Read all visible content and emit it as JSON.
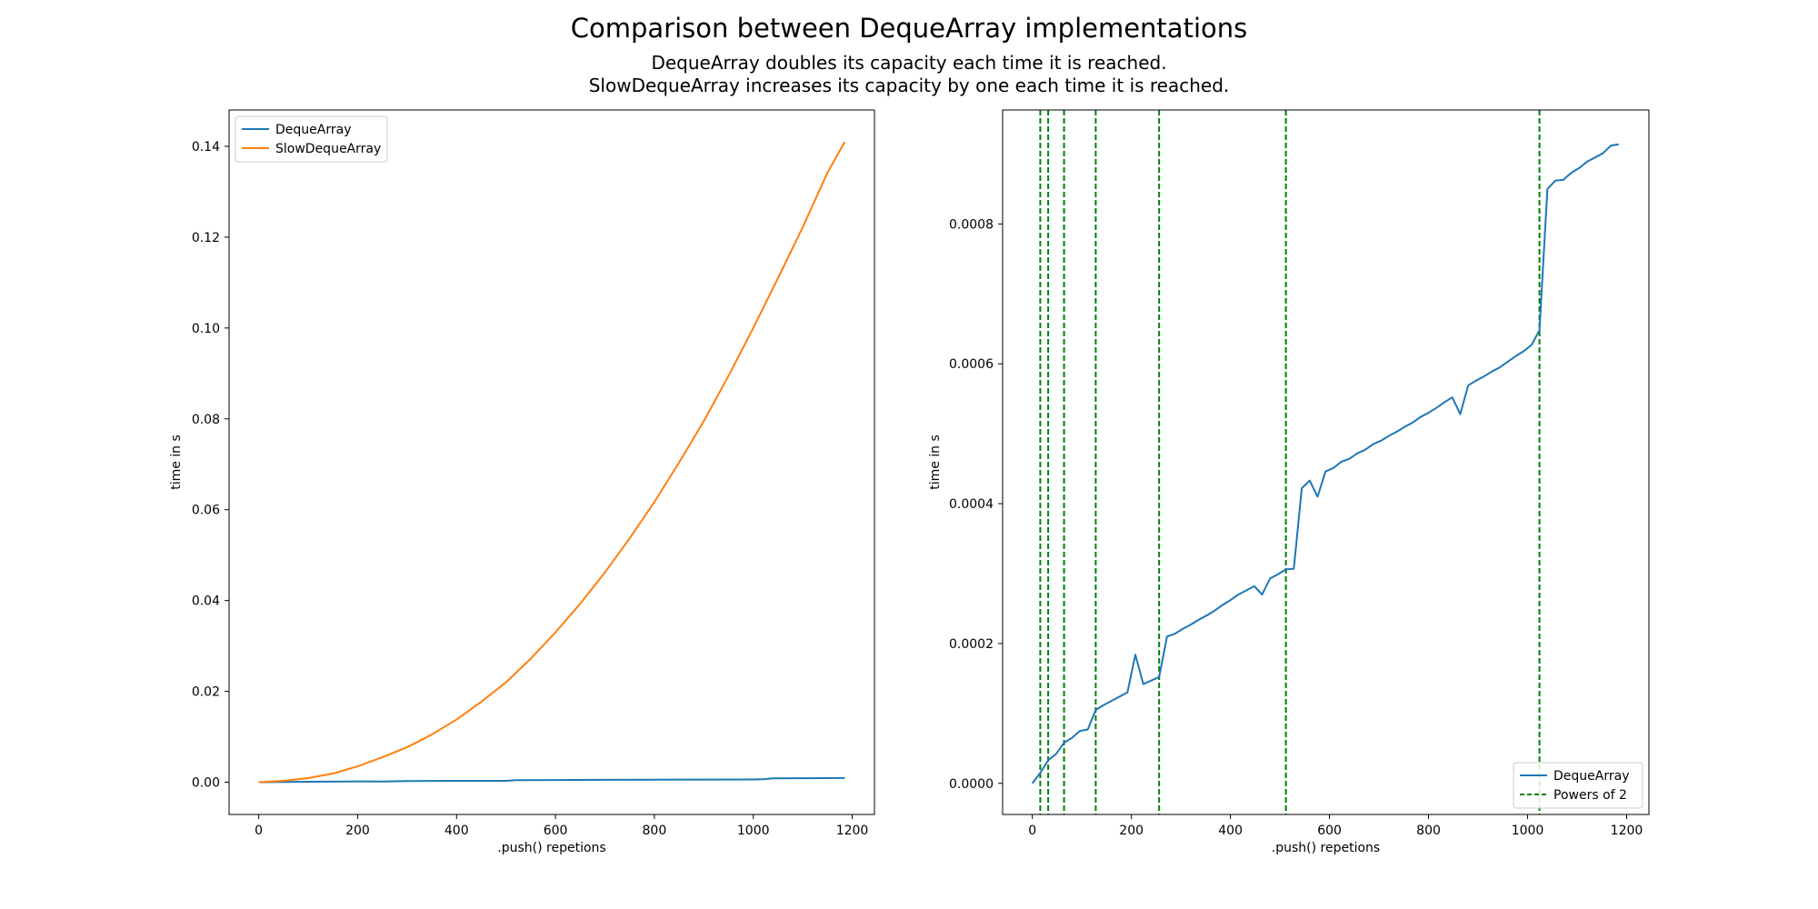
{
  "title": "Comparison between DequeArray implementations",
  "subtitle": [
    "DequeArray doubles its capacity each time it is reached.",
    "SlowDequeArray increases its capacity by one each time it is reached."
  ],
  "colors": {
    "deque": "#1f77b4",
    "slow": "#ff7f0e",
    "powers": "#008000"
  },
  "chart_data": [
    {
      "type": "line",
      "xlabel": ".push() repetions",
      "ylabel": "time in s",
      "xlim": [
        -60,
        1245
      ],
      "ylim": [
        -0.0071,
        0.148
      ],
      "xticks": [
        0,
        200,
        400,
        600,
        800,
        1000,
        1200
      ],
      "yticks": [
        0.0,
        0.02,
        0.04,
        0.06,
        0.08,
        0.1,
        0.12,
        0.14
      ],
      "ytick_labels": [
        "0.00",
        "0.02",
        "0.04",
        "0.06",
        "0.08",
        "0.10",
        "0.12",
        "0.14"
      ],
      "legend_position": "upper-left",
      "series": [
        {
          "name": "DequeArray",
          "color": "#1f77b4",
          "x": [
            0,
            100,
            200,
            250,
            300,
            400,
            500,
            520,
            600,
            700,
            800,
            900,
            1000,
            1020,
            1040,
            1100,
            1185
          ],
          "y": [
            0.0,
            0.00011,
            0.00018,
            0.00016,
            0.00025,
            0.0003,
            0.00031,
            0.00045,
            0.00048,
            0.00052,
            0.00055,
            0.00058,
            0.0006,
            0.00065,
            0.00085,
            0.00088,
            0.00092
          ]
        },
        {
          "name": "SlowDequeArray",
          "color": "#ff7f0e",
          "x": [
            0,
            50,
            100,
            150,
            200,
            250,
            300,
            350,
            400,
            450,
            500,
            550,
            600,
            650,
            700,
            750,
            800,
            850,
            900,
            950,
            1000,
            1050,
            1100,
            1150,
            1185
          ],
          "y": [
            0.0,
            0.0003,
            0.0009,
            0.0019,
            0.0035,
            0.0055,
            0.0077,
            0.0105,
            0.0138,
            0.0177,
            0.022,
            0.0272,
            0.033,
            0.0393,
            0.0462,
            0.0537,
            0.0617,
            0.0704,
            0.0795,
            0.0895,
            0.1,
            0.111,
            0.1222,
            0.1342,
            0.141
          ]
        }
      ]
    },
    {
      "type": "line",
      "xlabel": ".push() repetions",
      "ylabel": "time in s",
      "xlim": [
        -60,
        1245
      ],
      "ylim": [
        -4.45e-05,
        0.000963
      ],
      "xticks": [
        0,
        200,
        400,
        600,
        800,
        1000,
        1200
      ],
      "yticks": [
        0.0,
        0.0002,
        0.0004,
        0.0006,
        0.0008
      ],
      "ytick_labels": [
        "0.0000",
        "0.0002",
        "0.0004",
        "0.0006",
        "0.0008"
      ],
      "legend_position": "lower-right",
      "series": [
        {
          "name": "DequeArray",
          "color": "#1f77b4",
          "x": [
            0,
            16,
            32,
            48,
            64,
            80,
            96,
            112,
            128,
            144,
            160,
            176,
            192,
            208,
            224,
            240,
            256,
            272,
            288,
            304,
            320,
            336,
            352,
            368,
            384,
            400,
            416,
            432,
            448,
            464,
            480,
            496,
            512,
            528,
            544,
            560,
            576,
            592,
            608,
            624,
            640,
            656,
            672,
            688,
            704,
            720,
            736,
            752,
            768,
            784,
            800,
            816,
            832,
            848,
            864,
            880,
            896,
            912,
            928,
            944,
            960,
            976,
            992,
            1008,
            1024,
            1040,
            1056,
            1072,
            1088,
            1104,
            1120,
            1136,
            1152,
            1168,
            1184
          ],
          "y": [
            0.0,
            1.5e-05,
            3.3e-05,
            4.2e-05,
            5.8e-05,
            6.5e-05,
            7.5e-05,
            7.7e-05,
            0.000105,
            0.000112,
            0.000118,
            0.000124,
            0.00013,
            0.000184,
            0.000142,
            0.000147,
            0.000152,
            0.00021,
            0.000214,
            0.000221,
            0.000227,
            0.000234,
            0.00024,
            0.000247,
            0.000255,
            0.000262,
            0.00027,
            0.000276,
            0.000282,
            0.00027,
            0.000293,
            0.000299,
            0.000306,
            0.000307,
            0.000422,
            0.000433,
            0.00041,
            0.000446,
            0.000451,
            0.00046,
            0.000464,
            0.000472,
            0.000477,
            0.000485,
            0.00049,
            0.000497,
            0.000503,
            0.00051,
            0.000516,
            0.000524,
            0.00053,
            0.000537,
            0.000545,
            0.000552,
            0.000528,
            0.000569,
            0.000576,
            0.000582,
            0.000589,
            0.000595,
            0.000603,
            0.000611,
            0.000618,
            0.000627,
            0.000648,
            0.00085,
            0.000862,
            0.000863,
            0.000873,
            0.00088,
            0.000889,
            0.000895,
            0.000901,
            0.000912,
            0.000914
          ]
        }
      ],
      "reference_lines": {
        "name": "Powers of 2",
        "color": "#008000",
        "style": "dashed",
        "x": [
          16,
          32,
          64,
          128,
          256,
          512,
          1024
        ]
      }
    }
  ]
}
